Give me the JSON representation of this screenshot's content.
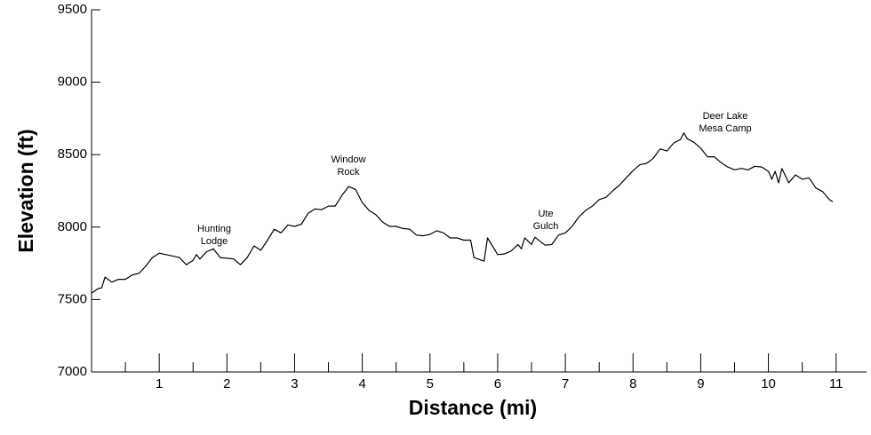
{
  "chart_data": {
    "type": "line",
    "xlabel": "Distance (mi)",
    "ylabel": "Elevation (ft)",
    "xlim": [
      0,
      11.45
    ],
    "ylim": [
      7000,
      9500
    ],
    "xticks": [
      1,
      2,
      3,
      4,
      5,
      6,
      7,
      8,
      9,
      10,
      11
    ],
    "xminorticks": [
      0.5,
      1.5,
      2.5,
      3.5,
      4.5,
      5.5,
      6.5,
      7.5,
      8.5,
      9.5,
      10.5
    ],
    "yticks": [
      7000,
      7500,
      8000,
      8500,
      9000,
      9500
    ],
    "grid": false,
    "series": [
      {
        "name": "Elevation",
        "color": "#000000",
        "x": [
          0,
          0.1,
          0.15,
          0.2,
          0.3,
          0.4,
          0.5,
          0.6,
          0.7,
          0.8,
          0.9,
          1.0,
          1.1,
          1.2,
          1.3,
          1.4,
          1.5,
          1.55,
          1.6,
          1.7,
          1.8,
          1.9,
          2.0,
          2.1,
          2.2,
          2.3,
          2.4,
          2.5,
          2.6,
          2.7,
          2.8,
          2.9,
          3.0,
          3.1,
          3.2,
          3.3,
          3.4,
          3.5,
          3.6,
          3.7,
          3.8,
          3.9,
          4.0,
          4.1,
          4.2,
          4.3,
          4.4,
          4.5,
          4.6,
          4.7,
          4.8,
          4.9,
          5.0,
          5.1,
          5.2,
          5.3,
          5.4,
          5.5,
          5.6,
          5.65,
          5.8,
          5.85,
          5.95,
          6.0,
          6.1,
          6.2,
          6.3,
          6.35,
          6.4,
          6.5,
          6.55,
          6.7,
          6.8,
          6.9,
          7.0,
          7.1,
          7.2,
          7.3,
          7.4,
          7.5,
          7.6,
          7.7,
          7.8,
          7.9,
          8.0,
          8.1,
          8.2,
          8.3,
          8.4,
          8.5,
          8.6,
          8.7,
          8.75,
          8.8,
          8.9,
          9.0,
          9.1,
          9.2,
          9.3,
          9.4,
          9.5,
          9.6,
          9.7,
          9.8,
          9.9,
          10.0,
          10.05,
          10.1,
          10.15,
          10.2,
          10.3,
          10.4,
          10.5,
          10.6,
          10.7,
          10.8,
          10.9,
          10.95
        ],
        "values": [
          7545,
          7576,
          7580,
          7655,
          7620,
          7640,
          7640,
          7670,
          7680,
          7730,
          7790,
          7820,
          7810,
          7800,
          7790,
          7740,
          7770,
          7810,
          7780,
          7830,
          7850,
          7790,
          7785,
          7780,
          7740,
          7790,
          7870,
          7840,
          7910,
          7985,
          7960,
          8015,
          8005,
          8020,
          8095,
          8125,
          8120,
          8145,
          8145,
          8220,
          8280,
          8260,
          8170,
          8115,
          8085,
          8035,
          8005,
          8005,
          7990,
          7985,
          7945,
          7940,
          7950,
          7975,
          7960,
          7925,
          7925,
          7910,
          7910,
          7790,
          7765,
          7925,
          7850,
          7810,
          7815,
          7835,
          7880,
          7850,
          7925,
          7880,
          7930,
          7875,
          7880,
          7945,
          7960,
          8005,
          8070,
          8115,
          8145,
          8190,
          8205,
          8250,
          8290,
          8340,
          8390,
          8430,
          8440,
          8475,
          8540,
          8525,
          8580,
          8605,
          8650,
          8610,
          8585,
          8545,
          8485,
          8485,
          8445,
          8415,
          8395,
          8405,
          8395,
          8420,
          8415,
          8385,
          8330,
          8385,
          8305,
          8405,
          8305,
          8360,
          8330,
          8340,
          8270,
          8245,
          8190,
          8175
        ]
      }
    ],
    "annotations": [
      {
        "lines": [
          "Hunting",
          "Lodge"
        ]
      },
      {
        "lines": [
          "Window",
          "Rock"
        ]
      },
      {
        "lines": [
          "Ute",
          "Gulch"
        ]
      },
      {
        "lines": [
          "Deer Lake",
          "Mesa Camp"
        ]
      }
    ]
  }
}
